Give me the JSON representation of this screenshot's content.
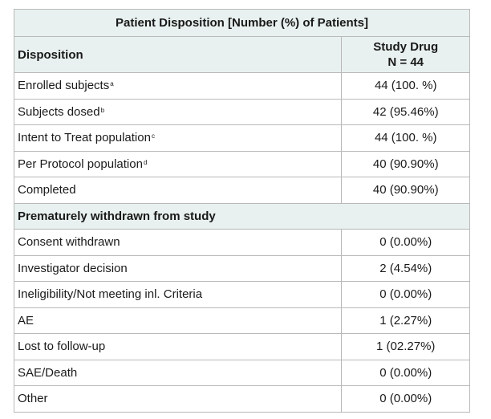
{
  "table": {
    "title": "Patient Disposition [Number (%) of Patients]",
    "header": {
      "disposition": "Disposition",
      "study_drug_line1": "Study Drug",
      "study_drug_line2": "N = 44"
    },
    "rows_top": [
      {
        "label": "Enrolled subjects",
        "sup": "a",
        "value": "44 (100. %)"
      },
      {
        "label": "Subjects dosed",
        "sup": "b",
        "value": "42 (95.46%)"
      },
      {
        "label": "Intent to Treat population",
        "sup": "c",
        "value": "44 (100. %)"
      },
      {
        "label": "Per Protocol population",
        "sup": "d",
        "value": "40 (90.90%)"
      },
      {
        "label": "Completed",
        "sup": "",
        "value": "40 (90.90%)"
      }
    ],
    "section_label": "Prematurely withdrawn from study",
    "rows_bottom": [
      {
        "label": "Consent withdrawn",
        "value": "0 (0.00%)"
      },
      {
        "label": "Investigator decision",
        "value": "2 (4.54%)"
      },
      {
        "label": "Ineligibility/Not meeting inl. Criteria",
        "value": "0 (0.00%)"
      },
      {
        "label": "AE",
        "value": "1 (2.27%)"
      },
      {
        "label": "Lost to follow-up",
        "value": "1 (02.27%)"
      },
      {
        "label": "SAE/Death",
        "value": "0 (0.00%)"
      },
      {
        "label": "Other",
        "value": "0 (0.00%)"
      }
    ]
  },
  "colors": {
    "header_background": "#e8f1ef",
    "border": "#b9b9b9"
  }
}
